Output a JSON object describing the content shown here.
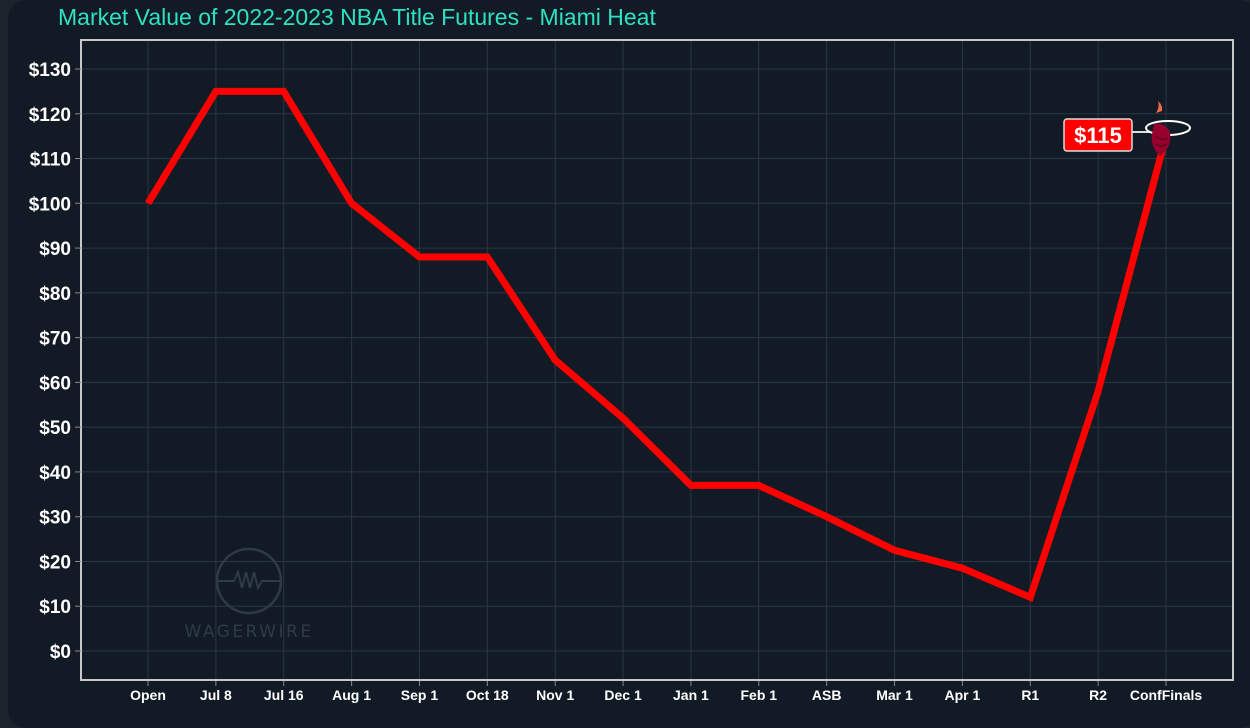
{
  "header": {
    "title": "Market Value of 2022-2023 NBA Title Futures - Miami Heat"
  },
  "watermark": {
    "text": "WAGERWIRE"
  },
  "colors": {
    "line": "#ff0000",
    "title": "#2fe0c2",
    "background": "#121b25",
    "grid": "#2a3642",
    "badge": "#ff0000"
  },
  "annotation": {
    "label": "$115",
    "icon": "miami-heat-logo-icon"
  },
  "chart_data": {
    "type": "line",
    "title": "Market Value of 2022-2023 NBA Title Futures - Miami Heat",
    "xlabel": "",
    "ylabel": "",
    "categories": [
      "Open",
      "Jul 8",
      "Jul 16",
      "Aug 1",
      "Sep 1",
      "Oct 18",
      "Nov 1",
      "Dec 1",
      "Jan 1",
      "Feb 1",
      "ASB",
      "Mar 1",
      "Apr 1",
      "R1",
      "R2",
      "ConfFinals"
    ],
    "series": [
      {
        "name": "Miami Heat",
        "values": [
          100,
          125,
          125,
          100,
          88,
          88,
          65,
          52,
          37,
          37,
          30,
          22.5,
          18.5,
          12,
          58,
          115
        ]
      }
    ],
    "yticks": [
      "$0",
      "$10",
      "$20",
      "$30",
      "$40",
      "$50",
      "$60",
      "$70",
      "$80",
      "$90",
      "$100",
      "$110",
      "$120",
      "$130"
    ],
    "ylim": [
      -5,
      138
    ],
    "grid": true,
    "legend": "none",
    "end_label": "$115"
  }
}
